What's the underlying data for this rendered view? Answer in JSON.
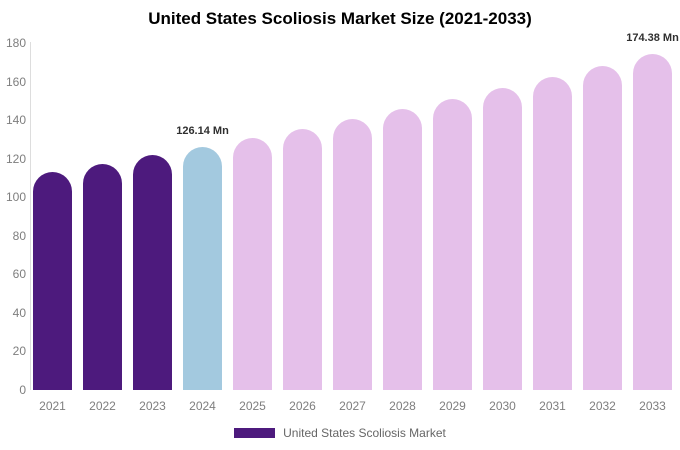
{
  "chart": {
    "title": "United States Scoliosis Market Size (2021-2033)"
  },
  "chart_data": {
    "type": "bar",
    "title": "United States Scoliosis Market Size (2021-2033)",
    "categories": [
      "2021",
      "2022",
      "2023",
      "2024",
      "2025",
      "2026",
      "2027",
      "2028",
      "2029",
      "2030",
      "2031",
      "2032",
      "2033"
    ],
    "series": [
      {
        "name": "United States Scoliosis Market",
        "values": [
          113.2,
          117.4,
          121.7,
          126.14,
          130.8,
          135.6,
          140.5,
          145.7,
          151.0,
          156.5,
          162.2,
          168.2,
          174.38
        ]
      }
    ],
    "value_unit": "Mn",
    "xlabel": "",
    "ylabel": "",
    "ylim": [
      0,
      180
    ],
    "yticks": [
      0,
      20,
      40,
      60,
      80,
      100,
      120,
      140,
      160,
      180
    ],
    "grid": false,
    "legend_position": "bottom",
    "bar_colors": [
      "#4D1A7D",
      "#4D1A7D",
      "#4D1A7D",
      "#A3C9DF",
      "#E5C0EA",
      "#E5C0EA",
      "#E5C0EA",
      "#E5C0EA",
      "#E5C0EA",
      "#E5C0EA",
      "#E5C0EA",
      "#E5C0EA",
      "#E5C0EA"
    ],
    "annotations": [
      {
        "category": "2024",
        "text": "126.14 Mn"
      },
      {
        "category": "2033",
        "text": "174.38 Mn"
      }
    ]
  },
  "legend": {
    "label": "United States Scoliosis Market",
    "swatch_color": "#4D1A7D"
  },
  "colors": {
    "bar_past": "#4D1A7D",
    "bar_highlight_current": "#A3C9DF",
    "bar_forecast": "#E5C0EA",
    "axis_line": "#DDDDDD",
    "tick_label": "#7E7E7E",
    "annotation_text": "#2F2F2F",
    "legend_text": "#666666",
    "title_text": "#000000",
    "background": "#FFFFFF"
  }
}
